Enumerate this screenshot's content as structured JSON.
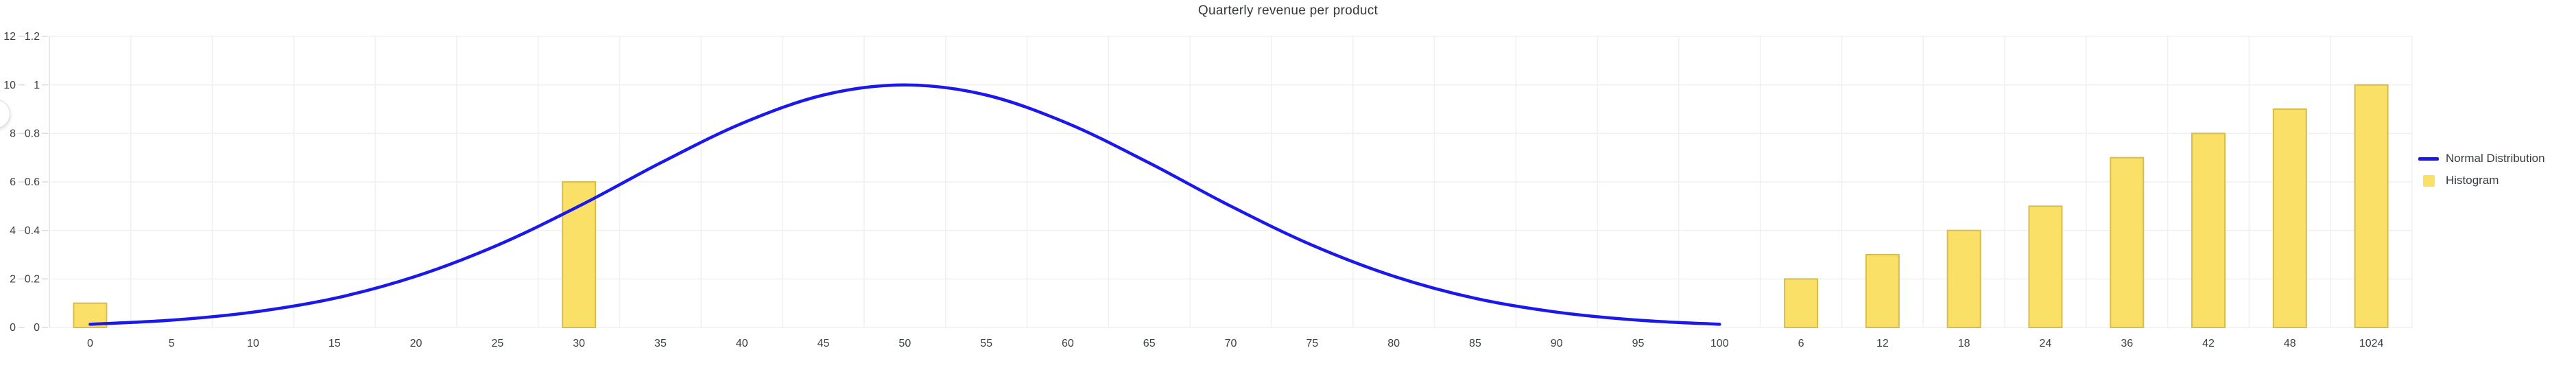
{
  "title": "Quarterly revenue per product",
  "legend": {
    "items": [
      {
        "label": "Normal Distribution",
        "swatch": "line"
      },
      {
        "label": "Histogram",
        "swatch": "box"
      }
    ]
  },
  "chart_data": {
    "type": "mixed",
    "title": "Quarterly revenue per product",
    "categories": [
      "0",
      "5",
      "10",
      "15",
      "20",
      "25",
      "30",
      "35",
      "40",
      "45",
      "50",
      "55",
      "60",
      "65",
      "70",
      "75",
      "80",
      "85",
      "90",
      "95",
      "100",
      "6",
      "12",
      "18",
      "24",
      "36",
      "42",
      "48",
      "1024"
    ],
    "series": [
      {
        "name": "Normal Distribution",
        "type": "line",
        "color": "#1A18EB",
        "values": [
          0.013,
          0.03,
          0.063,
          0.12,
          0.211,
          0.339,
          0.5,
          0.678,
          0.841,
          0.958,
          1,
          0.958,
          0.841,
          0.678,
          0.5,
          0.339,
          0.211,
          0.12,
          0.063,
          0.03,
          0.013,
          null,
          null,
          null,
          null,
          null,
          null,
          null,
          null
        ]
      },
      {
        "name": "Histogram",
        "type": "bar",
        "color": "#FAE066",
        "border_color": "#D8BD4E",
        "values": [
          0.1,
          null,
          null,
          null,
          null,
          null,
          0.6,
          null,
          null,
          null,
          null,
          null,
          null,
          null,
          null,
          null,
          null,
          null,
          null,
          null,
          null,
          0.2,
          0.3,
          0.4,
          0.5,
          0.7,
          0.8,
          0.9,
          1
        ]
      }
    ],
    "y_axis_outer": {
      "ticks": [
        "12",
        "10",
        "8",
        "6",
        "4",
        "2",
        "0"
      ],
      "range": [
        0,
        12
      ]
    },
    "y_axis_inner": {
      "ticks": [
        "1.2",
        "1",
        "0.8",
        "0.6",
        "0.4",
        "0.2",
        "0"
      ],
      "range": [
        0,
        1.2
      ]
    },
    "grid": true,
    "legend_position": "right",
    "colors": {
      "grid_line": "#F0F0F0",
      "axis_line": "#E3E3E3",
      "tick_mark": "#DCDCDC",
      "axis_text": "#3B4045",
      "title_text": "#33383d"
    }
  }
}
